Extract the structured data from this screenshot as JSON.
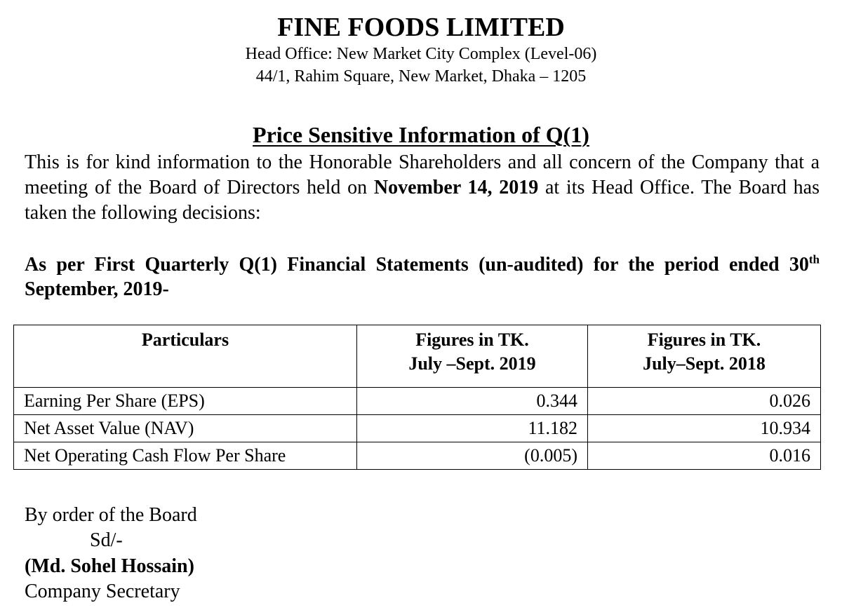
{
  "header": {
    "company": "FINE FOODS LIMITED",
    "address_line1": "Head Office: New Market City Complex (Level-06)",
    "address_line2": "44/1, Rahim Square, New Market, Dhaka – 1205"
  },
  "heading": "Price Sensitive Information of Q(1)",
  "paragraph": {
    "before": "This is for kind information to the Honorable Shareholders and all concern of the Company that a meeting of the Board of Directors held on ",
    "date": "November 14, 2019",
    "after": " at its Head Office. The Board has taken the following decisions:"
  },
  "subheading": {
    "part1": "As per First Quarterly Q(1) Financial Statements (un-audited) for the period ended 30",
    "sup": "th",
    "part2": " September, 2019-"
  },
  "table": {
    "headers": [
      {
        "line1": "Particulars",
        "line2": ""
      },
      {
        "line1": "Figures in TK.",
        "line2": "July –Sept. 2019"
      },
      {
        "line1": "Figures in TK.",
        "line2": "July–Sept. 2018"
      }
    ],
    "rows": [
      [
        "Earning Per Share (EPS)",
        "0.344",
        "0.026"
      ],
      [
        "Net Asset Value (NAV)",
        "11.182",
        "10.934"
      ],
      [
        "Net Operating Cash Flow Per Share",
        "(0.005)",
        "0.016"
      ]
    ]
  },
  "signature": {
    "line1": "By order of the Board",
    "line2": "Sd/-",
    "name": "(Md. Sohel Hossain)",
    "title": "Company Secretary"
  }
}
